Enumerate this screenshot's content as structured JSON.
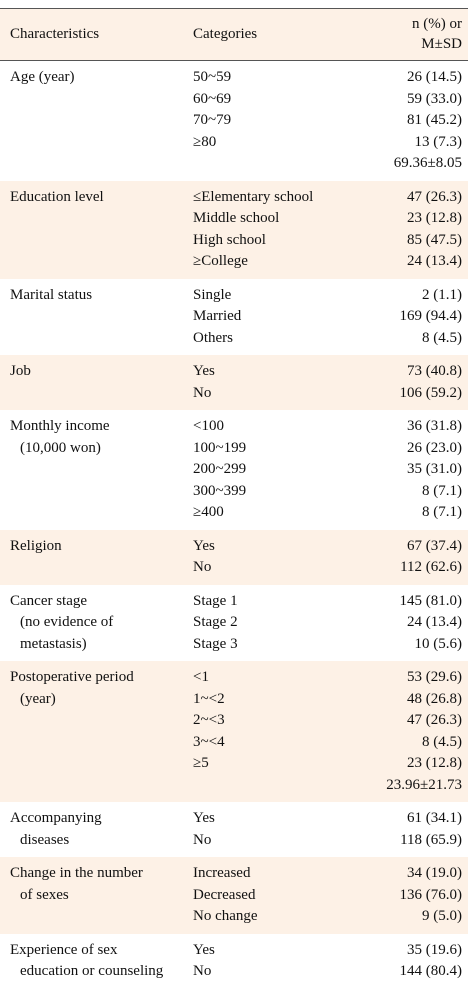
{
  "table": {
    "header": [
      "Characteristics",
      "Categories",
      [
        "n (%) or",
        "M±SD"
      ]
    ],
    "rows": [
      {
        "characteristic": [
          "Age (year)"
        ],
        "categories": [
          "50~59",
          "60~69",
          "70~79",
          "≥80"
        ],
        "values": [
          "26 (14.5)",
          "59 (33.0)",
          "81 (45.2)",
          "13 (7.3)",
          "69.36±8.05"
        ]
      },
      {
        "characteristic": [
          "Education level"
        ],
        "categories": [
          "≤Elementary school",
          "Middle school",
          "High school",
          "≥College"
        ],
        "values": [
          "47 (26.3)",
          "23 (12.8)",
          "85 (47.5)",
          "24 (13.4)"
        ]
      },
      {
        "characteristic": [
          "Marital status"
        ],
        "categories": [
          "Single",
          "Married",
          "Others"
        ],
        "values": [
          "2 (1.1)",
          "169 (94.4)",
          "8 (4.5)"
        ]
      },
      {
        "characteristic": [
          "Job"
        ],
        "categories": [
          "Yes",
          "No"
        ],
        "values": [
          "73 (40.8)",
          "106 (59.2)"
        ]
      },
      {
        "characteristic": [
          "Monthly income",
          "(10,000 won)"
        ],
        "categories": [
          "<100",
          "100~199",
          "200~299",
          "300~399",
          "≥400"
        ],
        "values": [
          "36 (31.8)",
          "26 (23.0)",
          "35 (31.0)",
          "8 (7.1)",
          "8 (7.1)"
        ]
      },
      {
        "characteristic": [
          "Religion"
        ],
        "categories": [
          "Yes",
          "No"
        ],
        "values": [
          "67 (37.4)",
          "112 (62.6)"
        ]
      },
      {
        "characteristic": [
          "Cancer stage",
          "(no evidence of",
          "metastasis)"
        ],
        "categories": [
          "Stage 1",
          "Stage 2",
          "Stage 3"
        ],
        "values": [
          "145 (81.0)",
          "24 (13.4)",
          "10 (5.6)"
        ]
      },
      {
        "characteristic": [
          "Postoperative period",
          "(year)"
        ],
        "categories": [
          "<1",
          "1~<2",
          "2~<3",
          "3~<4",
          "≥5"
        ],
        "values": [
          "53 (29.6)",
          "48 (26.8)",
          "47 (26.3)",
          "8 (4.5)",
          "23 (12.8)",
          "23.96±21.73"
        ]
      },
      {
        "characteristic": [
          "Accompanying",
          "diseases"
        ],
        "categories": [
          "Yes",
          "No"
        ],
        "values": [
          "61 (34.1)",
          "118 (65.9)"
        ]
      },
      {
        "characteristic": [
          "Change in the number",
          "of sexes"
        ],
        "categories": [
          "Increased",
          "Decreased",
          "No change"
        ],
        "values": [
          "34 (19.0)",
          "136 (76.0)",
          "9 (5.0)"
        ]
      },
      {
        "characteristic": [
          "Experience of sex",
          "education or counseling"
        ],
        "categories": [
          "Yes",
          "No"
        ],
        "values": [
          "35 (19.6)",
          "144 (80.4)"
        ]
      }
    ]
  }
}
